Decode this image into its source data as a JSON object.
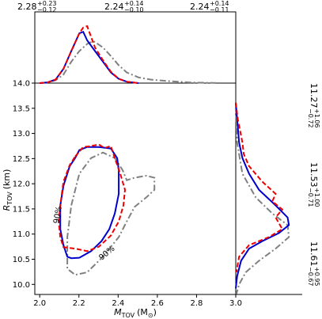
{
  "chart_data": {
    "type": "corner",
    "xlabel": {
      "symbol": "M",
      "sub": "TOV",
      "unit": "(M",
      "unit_sub": "⊙",
      "close": ")"
    },
    "ylabel": {
      "symbol": "R",
      "sub": "TOV",
      "unit": "(km)"
    },
    "xlim": [
      1.975,
      3.0
    ],
    "xticks": [
      {
        "value": 2.0,
        "label": "2.0"
      },
      {
        "value": 2.2,
        "label": "2.2"
      },
      {
        "value": 2.4,
        "label": "2.4"
      },
      {
        "value": 2.6,
        "label": "2.6"
      },
      {
        "value": 2.8,
        "label": "2.8"
      },
      {
        "value": 3.0,
        "label": "3.0"
      }
    ],
    "ylim": [
      9.8,
      14.0
    ],
    "yticks": [
      {
        "value": 10.0,
        "label": "10.0"
      },
      10.5,
      {
        "value": 11.0,
        "label": "11.0"
      },
      11.5,
      {
        "value": 12.0,
        "label": "12.0"
      },
      12.5,
      {
        "value": 13.0,
        "label": "13.0"
      },
      13.5,
      {
        "value": 14.0,
        "label": "14.0"
      }
    ],
    "density_lim": [
      0,
      1
    ],
    "annotations": [
      "90%",
      "90%"
    ],
    "series": [
      {
        "color": "#808080",
        "linestyle": "dashdot",
        "mass_stat": {
          "value": 2.28,
          "upper": "+0.23",
          "lower": "−0.12"
        },
        "radius_stat": {
          "value": 11.27,
          "upper": "+1.06",
          "lower": "−0.72"
        },
        "contour": {
          "x": [
            2.161,
            2.202,
            2.262,
            2.323,
            2.383,
            2.423,
            2.444,
            2.484,
            2.544,
            2.585,
            2.585,
            2.544,
            2.484,
            2.444,
            2.403,
            2.323,
            2.242,
            2.181,
            2.141,
            2.141,
            2.161
          ],
          "y": [
            11.57,
            12.2,
            12.51,
            12.62,
            12.51,
            12.27,
            12.07,
            12.12,
            12.16,
            12.12,
            11.88,
            11.73,
            11.54,
            11.25,
            10.94,
            10.55,
            10.24,
            10.19,
            10.31,
            10.94,
            11.57
          ]
        },
        "mass_density": {
          "x": [
            2.0,
            2.04,
            2.081,
            2.121,
            2.161,
            2.202,
            2.242,
            2.274,
            2.323,
            2.363,
            2.403,
            2.444,
            2.504,
            2.565,
            2.645,
            2.766,
            2.927
          ],
          "d": [
            0,
            0.01,
            0.04,
            0.12,
            0.3,
            0.45,
            0.55,
            0.59,
            0.5,
            0.38,
            0.25,
            0.15,
            0.08,
            0.05,
            0.03,
            0.01,
            0
          ]
        },
        "radius_density": {
          "y": [
            13.61,
            12.82,
            12.2,
            11.73,
            11.41,
            11.18,
            10.94,
            10.71,
            10.47,
            10.24,
            10.0,
            9.81
          ],
          "d": [
            0,
            0.02,
            0.1,
            0.3,
            0.55,
            0.78,
            0.8,
            0.6,
            0.35,
            0.15,
            0.05,
            0.01
          ]
        }
      },
      {
        "color": "#0000cc",
        "linestyle": "solid",
        "mass_stat": {
          "value": 2.24,
          "upper": "+0.14",
          "lower": "−0.10"
        },
        "radius_stat": {
          "value": 11.53,
          "upper": "+1.00",
          "lower": "−0.71"
        },
        "contour": {
          "x": [
            2.181,
            2.202,
            2.242,
            2.302,
            2.363,
            2.395,
            2.403,
            2.403,
            2.383,
            2.355,
            2.315,
            2.262,
            2.202,
            2.161,
            2.141,
            2.121,
            2.105,
            2.105,
            2.121,
            2.153,
            2.181
          ],
          "y": [
            12.51,
            12.67,
            12.73,
            12.73,
            12.7,
            12.51,
            12.27,
            11.8,
            11.41,
            11.1,
            10.86,
            10.66,
            10.53,
            10.52,
            10.55,
            10.78,
            11.1,
            11.57,
            11.96,
            12.35,
            12.51
          ]
        },
        "mass_density": {
          "x": [
            2.0,
            2.04,
            2.081,
            2.121,
            2.161,
            2.202,
            2.222,
            2.242,
            2.282,
            2.323,
            2.363,
            2.403,
            2.444,
            2.504
          ],
          "d": [
            0,
            0.01,
            0.05,
            0.2,
            0.45,
            0.7,
            0.72,
            0.6,
            0.45,
            0.3,
            0.15,
            0.06,
            0.02,
            0
          ]
        },
        "radius_density": {
          "y": [
            13.61,
            13.29,
            12.82,
            12.51,
            12.2,
            11.88,
            11.57,
            11.33,
            11.18,
            11.02,
            10.86,
            10.71,
            10.47,
            10.16,
            9.92
          ],
          "d": [
            0,
            0.02,
            0.05,
            0.1,
            0.2,
            0.35,
            0.6,
            0.78,
            0.8,
            0.65,
            0.4,
            0.2,
            0.08,
            0.02,
            0
          ]
        }
      },
      {
        "color": "#ee0000",
        "linestyle": "dashed",
        "mass_stat": {
          "value": 2.24,
          "upper": "+0.14",
          "lower": "−0.11"
        },
        "radius_stat": {
          "value": 11.61,
          "upper": "+0.95",
          "lower": "−0.67"
        },
        "contour": {
          "x": [
            2.181,
            2.222,
            2.262,
            2.302,
            2.331,
            2.363,
            2.383,
            2.411,
            2.435,
            2.427,
            2.403,
            2.363,
            2.302,
            2.242,
            2.181,
            2.121,
            2.105,
            2.097,
            2.105,
            2.121,
            2.153,
            2.181
          ],
          "y": [
            12.54,
            12.73,
            12.75,
            12.78,
            12.71,
            12.75,
            12.51,
            12.2,
            11.88,
            11.57,
            11.25,
            10.97,
            10.75,
            10.66,
            10.71,
            10.74,
            10.94,
            11.25,
            11.57,
            12.04,
            12.37,
            12.54
          ]
        },
        "mass_density": {
          "x": [
            2.0,
            2.04,
            2.081,
            2.121,
            2.161,
            2.202,
            2.222,
            2.242,
            2.262,
            2.282,
            2.323,
            2.363,
            2.403,
            2.444,
            2.504
          ],
          "d": [
            0,
            0.01,
            0.05,
            0.2,
            0.45,
            0.7,
            0.78,
            0.8,
            0.65,
            0.5,
            0.32,
            0.16,
            0.06,
            0.02,
            0
          ]
        },
        "radius_density": {
          "y": [
            13.61,
            13.29,
            12.82,
            12.59,
            12.35,
            12.04,
            11.8,
            11.65,
            11.49,
            11.33,
            11.1,
            10.94,
            10.78,
            10.55,
            10.24
          ],
          "d": [
            0,
            0.03,
            0.1,
            0.12,
            0.2,
            0.4,
            0.6,
            0.55,
            0.7,
            0.6,
            0.7,
            0.5,
            0.2,
            0.05,
            0.01
          ]
        }
      }
    ]
  }
}
